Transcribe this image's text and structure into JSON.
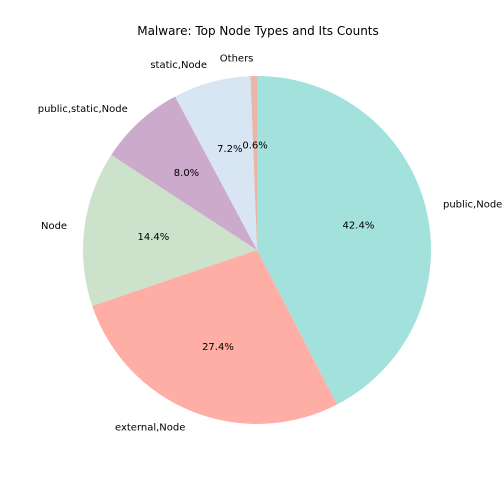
{
  "chart_data": {
    "type": "pie",
    "title": "Malware: Top Node Types and Its Counts",
    "start_angle_deg": 90,
    "direction": "clockwise",
    "legend": "none",
    "slices": [
      {
        "label": "public,Node",
        "percent": 42.4,
        "pct_label": "42.4%",
        "color": "#a3e1dc"
      },
      {
        "label": "external,Node",
        "percent": 27.4,
        "pct_label": "27.4%",
        "color": "#ffaea5"
      },
      {
        "label": "Node",
        "percent": 14.4,
        "pct_label": "14.4%",
        "color": "#cce2cb"
      },
      {
        "label": "public,static,Node",
        "percent": 8.0,
        "pct_label": "8.0%",
        "color": "#cbaacb"
      },
      {
        "label": "static,Node",
        "percent": 7.2,
        "pct_label": "7.2%",
        "color": "#d8e6f3"
      },
      {
        "label": "Others",
        "percent": 0.6,
        "pct_label": "0.6%",
        "color": "#e9b7a9"
      }
    ]
  }
}
